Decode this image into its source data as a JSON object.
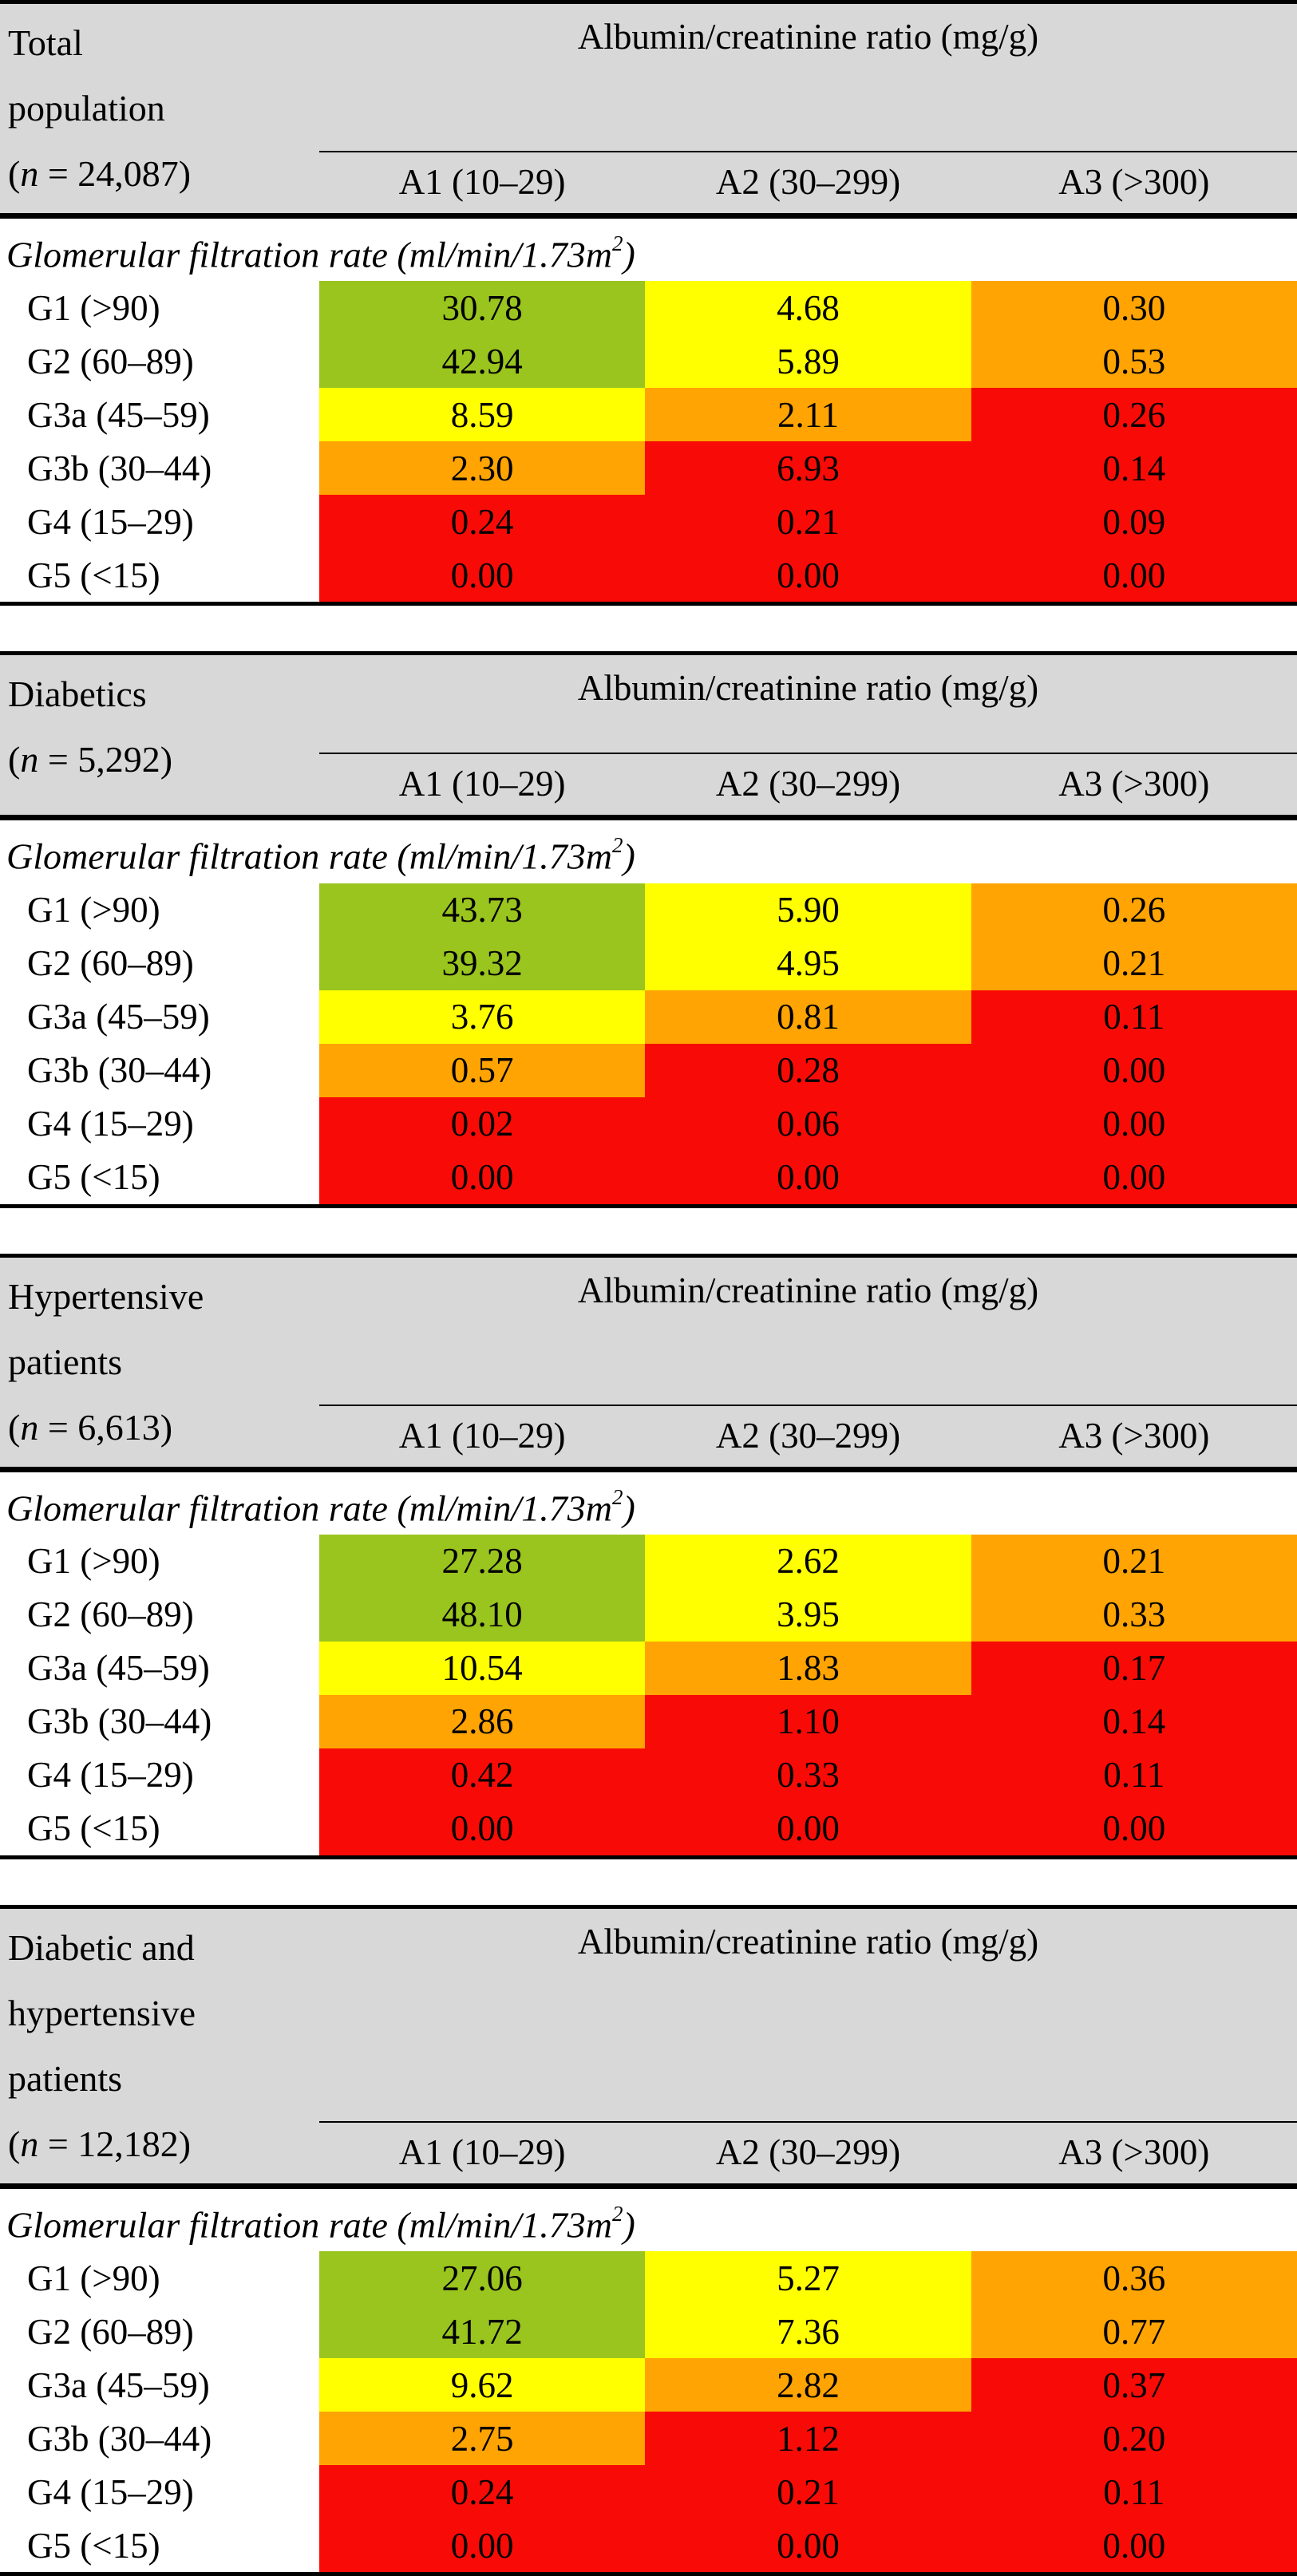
{
  "colors": {
    "green": "#9AC41E",
    "yellow": "#FFFF00",
    "orange": "#FFA402",
    "red": "#F80B06",
    "header_bg": "#D8D8D8",
    "line": "#000000",
    "text": "#000000"
  },
  "gfr_label": {
    "main": "Glomerular filtration rate (ml/min/1.73m",
    "sup": "2",
    "end": ")"
  },
  "chart_data": {
    "type": "heatmap",
    "x_axis_label": "Albumin/creatinine ratio (mg/g)",
    "y_axis_label": "Glomerular filtration rate (ml/min/1.73m2)",
    "columns": [
      "A1 (10–29)",
      "A2 (30–299)",
      "A3 (>300)"
    ],
    "row_labels": [
      "G1 (>90)",
      "G2 (60–89)",
      "G3a (45–59)",
      "G3b (30–44)",
      "G4 (15–29)",
      "G5 (<15)"
    ],
    "cell_colors": [
      [
        "green",
        "yellow",
        "orange"
      ],
      [
        "green",
        "yellow",
        "orange"
      ],
      [
        "yellow",
        "orange",
        "red"
      ],
      [
        "orange",
        "red",
        "red"
      ],
      [
        "red",
        "red",
        "red"
      ],
      [
        "red",
        "red",
        "red"
      ]
    ],
    "tables": [
      {
        "title_lines": [
          "Total",
          "population"
        ],
        "n_pre": "(",
        "n_sym": "n",
        "n_rest": " = 24,087)",
        "values": [
          [
            "30.78",
            "4.68",
            "0.30"
          ],
          [
            "42.94",
            "5.89",
            "0.53"
          ],
          [
            "8.59",
            "2.11",
            "0.26"
          ],
          [
            "2.30",
            "6.93",
            "0.14"
          ],
          [
            "0.24",
            "0.21",
            "0.09"
          ],
          [
            "0.00",
            "0.00",
            "0.00"
          ]
        ]
      },
      {
        "title_lines": [
          "Diabetics"
        ],
        "n_pre": "(",
        "n_sym": "n",
        "n_rest": " = 5,292)",
        "values": [
          [
            "43.73",
            "5.90",
            "0.26"
          ],
          [
            "39.32",
            "4.95",
            "0.21"
          ],
          [
            "3.76",
            "0.81",
            "0.11"
          ],
          [
            "0.57",
            "0.28",
            "0.00"
          ],
          [
            "0.02",
            "0.06",
            "0.00"
          ],
          [
            "0.00",
            "0.00",
            "0.00"
          ]
        ]
      },
      {
        "title_lines": [
          "Hypertensive",
          "patients"
        ],
        "n_pre": "(",
        "n_sym": "n",
        "n_rest": " = 6,613)",
        "values": [
          [
            "27.28",
            "2.62",
            "0.21"
          ],
          [
            "48.10",
            "3.95",
            "0.33"
          ],
          [
            "10.54",
            "1.83",
            "0.17"
          ],
          [
            "2.86",
            "1.10",
            "0.14"
          ],
          [
            "0.42",
            "0.33",
            "0.11"
          ],
          [
            "0.00",
            "0.00",
            "0.00"
          ]
        ]
      },
      {
        "title_lines": [
          "Diabetic and",
          "hypertensive",
          "patients"
        ],
        "n_pre": "(",
        "n_sym": "n",
        "n_rest": " = 12,182)",
        "values": [
          [
            "27.06",
            "5.27",
            "0.36"
          ],
          [
            "41.72",
            "7.36",
            "0.77"
          ],
          [
            "9.62",
            "2.82",
            "0.37"
          ],
          [
            "2.75",
            "1.12",
            "0.20"
          ],
          [
            "0.24",
            "0.21",
            "0.11"
          ],
          [
            "0.00",
            "0.00",
            "0.00"
          ]
        ]
      }
    ]
  }
}
